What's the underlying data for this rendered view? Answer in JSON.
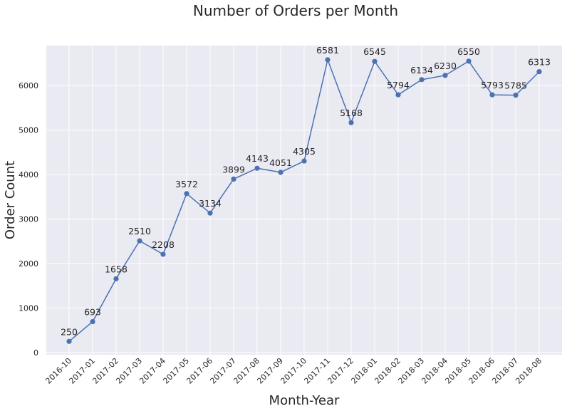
{
  "chart_data": {
    "type": "line",
    "title": "Number of Orders per Month",
    "xlabel": "Month-Year",
    "ylabel": "Order Count",
    "categories": [
      "2016-10",
      "2017-01",
      "2017-02",
      "2017-03",
      "2017-04",
      "2017-05",
      "2017-06",
      "2017-07",
      "2017-08",
      "2017-09",
      "2017-10",
      "2017-11",
      "2017-12",
      "2018-01",
      "2018-02",
      "2018-03",
      "2018-04",
      "2018-05",
      "2018-06",
      "2018-07",
      "2018-08"
    ],
    "values": [
      250,
      693,
      1658,
      2510,
      2208,
      3572,
      3134,
      3899,
      4143,
      4051,
      4305,
      6581,
      5168,
      6545,
      5794,
      6134,
      6230,
      6550,
      5793,
      5785,
      6313
    ],
    "yticks": [
      0,
      1000,
      2000,
      3000,
      4000,
      5000,
      6000
    ],
    "ylim": [
      -50,
      6900
    ],
    "grid": true,
    "colors": {
      "line": "#4c72b0",
      "background": "#eaeaf2",
      "grid": "#ffffff"
    }
  }
}
